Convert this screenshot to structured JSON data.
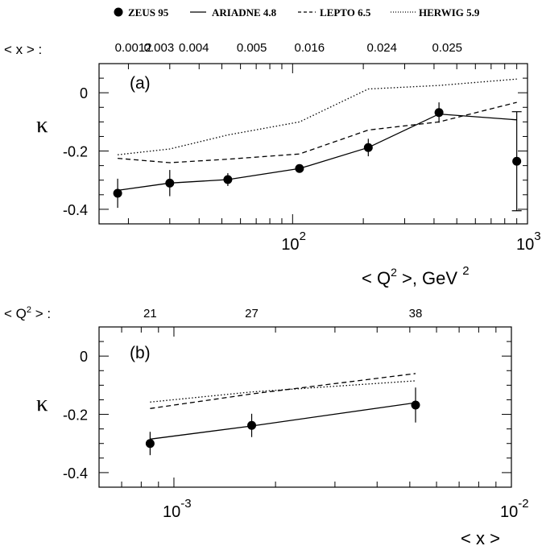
{
  "legend": {
    "items": [
      {
        "label": "ZEUS 95",
        "style": "marker"
      },
      {
        "label": "ARIADNE 4.8",
        "style": "solid"
      },
      {
        "label": "LEPTO 6.5",
        "style": "dashed"
      },
      {
        "label": "HERWIG 5.9",
        "style": "dotted"
      }
    ]
  },
  "chart_data": [
    {
      "type": "line",
      "panel_label": "(a)",
      "xscale": "log",
      "xlim": [
        15,
        1000
      ],
      "ylim": [
        -0.45,
        0.1
      ],
      "ylabel": "κ",
      "yticks": [
        0,
        -0.2,
        -0.4
      ],
      "yticklabels": [
        "0",
        "-0.2",
        "-0.4"
      ],
      "xticklabels": [
        {
          "value": 100,
          "base": "10",
          "exp": "2"
        },
        {
          "value": 1000,
          "base": "10",
          "exp": "3"
        }
      ],
      "xlabel": {
        "pre": "< Q",
        "sup": "2",
        "post": " >, GeV ",
        "unit_sup": "2"
      },
      "top_axis": {
        "label": "< x > :",
        "positions": [
          21,
          27,
          38,
          67,
          118,
          240,
          455
        ],
        "labels": [
          "0.0012",
          "0.003",
          "0.004",
          "0.005",
          "0.016",
          "0.024",
          "0.025"
        ]
      },
      "data_x": [
        18,
        30,
        53,
        107,
        210,
        420,
        900
      ],
      "series": [
        {
          "name": "ZEUS 95",
          "style": "marker",
          "x": [
            18,
            30,
            53,
            107,
            210,
            420,
            900
          ],
          "values": [
            -0.345,
            -0.31,
            -0.298,
            -0.26,
            -0.188,
            -0.068,
            -0.235
          ],
          "errors": [
            0.05,
            0.045,
            0.022,
            0.012,
            0.03,
            0.035,
            0.17
          ]
        },
        {
          "name": "ARIADNE 4.8",
          "style": "solid",
          "x": [
            18,
            30,
            53,
            107,
            210,
            420,
            900
          ],
          "values": [
            -0.335,
            -0.31,
            -0.298,
            -0.26,
            -0.188,
            -0.073,
            -0.093
          ]
        },
        {
          "name": "LEPTO 6.5",
          "style": "dashed",
          "x": [
            18,
            30,
            53,
            107,
            210,
            420,
            900
          ],
          "values": [
            -0.225,
            -0.24,
            -0.228,
            -0.21,
            -0.128,
            -0.1,
            -0.033
          ]
        },
        {
          "name": "HERWIG 5.9",
          "style": "dotted",
          "x": [
            18,
            30,
            53,
            107,
            210,
            420,
            900
          ],
          "values": [
            -0.213,
            -0.193,
            -0.145,
            -0.1,
            0.013,
            0.025,
            0.047
          ]
        }
      ]
    },
    {
      "type": "line",
      "panel_label": "(b)",
      "xscale": "log",
      "xlim": [
        0.0006,
        0.01
      ],
      "ylim": [
        -0.45,
        0.1
      ],
      "ylabel": "κ",
      "yticks": [
        0,
        -0.2,
        -0.4
      ],
      "yticklabels": [
        "0",
        "-0.2",
        "-0.4"
      ],
      "xticklabels": [
        {
          "value": 0.001,
          "base": "10",
          "exp": "-3"
        },
        {
          "value": 0.01,
          "base": "10",
          "exp": "-2"
        }
      ],
      "xlabel": {
        "pre": "< x >",
        "sup": "",
        "post": "",
        "unit_sup": ""
      },
      "top_axis": {
        "label_pre": "< Q",
        "label_sup": "2",
        "label_post": " > :",
        "positions": [
          0.00085,
          0.0017,
          0.0052
        ],
        "labels": [
          "21",
          "27",
          "38"
        ]
      },
      "data_x": [
        0.00085,
        0.0017,
        0.0052
      ],
      "series": [
        {
          "name": "ZEUS 95",
          "style": "marker",
          "x": [
            0.00085,
            0.0017,
            0.0052
          ],
          "values": [
            -0.3,
            -0.238,
            -0.168
          ],
          "errors": [
            0.04,
            0.04,
            0.06
          ]
        },
        {
          "name": "ARIADNE 4.8",
          "style": "solid",
          "x": [
            0.00085,
            0.0017,
            0.0052
          ],
          "values": [
            -0.285,
            -0.24,
            -0.16
          ]
        },
        {
          "name": "LEPTO 6.5",
          "style": "dashed",
          "x": [
            0.00085,
            0.0017,
            0.0052
          ],
          "values": [
            -0.18,
            -0.13,
            -0.06
          ]
        },
        {
          "name": "HERWIG 5.9",
          "style": "dotted",
          "x": [
            0.00085,
            0.0017,
            0.0052
          ],
          "values": [
            -0.158,
            -0.123,
            -0.085
          ]
        }
      ]
    }
  ]
}
